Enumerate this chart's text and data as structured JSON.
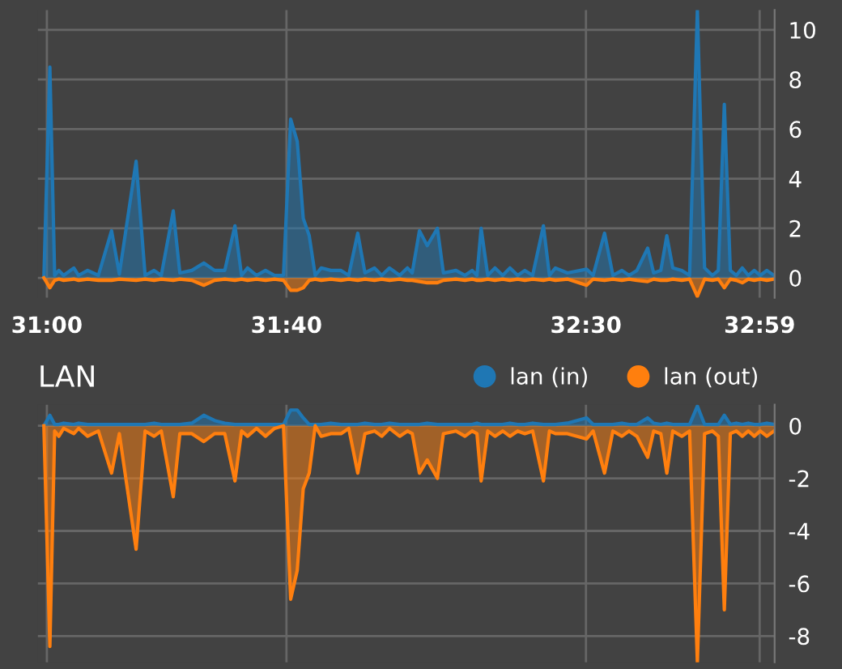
{
  "chart_data": [
    {
      "type": "area",
      "grid": true,
      "legend": false,
      "x": [
        1859.5,
        1860.5,
        1861.3,
        1862,
        1862.8,
        1864.5,
        1865.3,
        1866.8,
        1868.6,
        1870.8,
        1872.1,
        1874.9,
        1876.4,
        1877.9,
        1879.1,
        1881.1,
        1882.2,
        1884.2,
        1886.2,
        1888,
        1889.7,
        1891.4,
        1892.5,
        1893.5,
        1895,
        1896.5,
        1898,
        1899.5,
        1900.7,
        1901.8,
        1902.8,
        1903.8,
        1904.8,
        1905.8,
        1907.4,
        1909.1,
        1910.4,
        1911.9,
        1913.1,
        1914.7,
        1915.9,
        1917.2,
        1918.9,
        1920.2,
        1921,
        1922.2,
        1923.5,
        1925.2,
        1926.2,
        1928.3,
        1929.8,
        1931,
        1931.8,
        1932.5,
        1933.6,
        1934.8,
        1936.1,
        1937.3,
        1938.6,
        1939.8,
        1941.1,
        1942.9,
        1943.9,
        1944.9,
        1946.9,
        1950.1,
        1951.2,
        1953.1,
        1954.5,
        1956,
        1957.2,
        1958.5,
        1960.3,
        1961.3,
        1962.5,
        1963.5,
        1964.5,
        1966,
        1967.3,
        1968.6,
        1969.8,
        1971.1,
        1972.1,
        1973.1,
        1974.1,
        1975.1,
        1976.1,
        1977.1,
        1978.1,
        1979.1,
        1980.2,
        1981.4
      ],
      "xlim": [
        1858.5,
        1981.5
      ],
      "ylim": [
        -0.8,
        10.8
      ],
      "xticks": [
        {
          "value": 1860,
          "label": "31:00"
        },
        {
          "value": 1900,
          "label": "31:40"
        },
        {
          "value": 1950,
          "label": "32:30"
        },
        {
          "value": 1979,
          "label": "32:59"
        }
      ],
      "yticks": [
        0,
        2,
        4,
        6,
        8,
        10
      ],
      "series": [
        {
          "color": "#1f77b4",
          "values": [
            0,
            8.5,
            0.1,
            0.3,
            0.1,
            0.4,
            0.1,
            0.3,
            0.1,
            1.9,
            0.15,
            4.7,
            0.1,
            0.3,
            0.1,
            2.7,
            0.2,
            0.3,
            0.6,
            0.3,
            0.3,
            2.1,
            0.1,
            0.4,
            0.1,
            0.3,
            0.1,
            0.1,
            6.4,
            5.5,
            2.4,
            1.7,
            0.1,
            0.4,
            0.3,
            0.3,
            0.1,
            1.8,
            0.2,
            0.4,
            0.1,
            0.4,
            0.1,
            0.4,
            0.2,
            1.9,
            1.3,
            2.0,
            0.2,
            0.3,
            0.1,
            0.3,
            0.1,
            2.0,
            0.1,
            0.4,
            0.1,
            0.4,
            0.1,
            0.3,
            0.1,
            2.1,
            0.1,
            0.4,
            0.2,
            0.35,
            0.1,
            1.8,
            0.1,
            0.3,
            0.1,
            0.3,
            1.2,
            0.2,
            0.3,
            1.7,
            0.4,
            0.3,
            0.1,
            10.8,
            0.4,
            0.1,
            0.3,
            7.0,
            0.3,
            0.1,
            0.4,
            0.1,
            0.3,
            0.1,
            0.3,
            0.1
          ]
        },
        {
          "color": "#ff7f0e",
          "values": [
            0,
            -0.4,
            -0.1,
            -0.05,
            -0.1,
            -0.05,
            -0.1,
            -0.05,
            -0.1,
            -0.1,
            -0.05,
            -0.1,
            -0.05,
            -0.1,
            -0.05,
            -0.1,
            -0.05,
            -0.1,
            -0.3,
            -0.1,
            -0.05,
            -0.1,
            -0.05,
            -0.1,
            -0.05,
            -0.1,
            -0.05,
            -0.1,
            -0.5,
            -0.5,
            -0.4,
            -0.1,
            -0.05,
            -0.1,
            -0.05,
            -0.1,
            -0.05,
            -0.1,
            -0.05,
            -0.1,
            -0.05,
            -0.1,
            -0.05,
            -0.1,
            -0.1,
            -0.15,
            -0.2,
            -0.2,
            -0.1,
            -0.05,
            -0.1,
            -0.05,
            -0.1,
            -0.1,
            -0.05,
            -0.1,
            -0.05,
            -0.1,
            -0.05,
            -0.1,
            -0.05,
            -0.1,
            -0.05,
            -0.1,
            -0.05,
            -0.3,
            -0.05,
            -0.1,
            -0.05,
            -0.1,
            -0.05,
            -0.1,
            -0.15,
            -0.05,
            -0.1,
            -0.1,
            -0.05,
            -0.1,
            -0.05,
            -0.75,
            -0.05,
            -0.1,
            -0.05,
            -0.4,
            -0.05,
            -0.1,
            -0.2,
            -0.05,
            -0.1,
            -0.05,
            -0.1,
            -0.05
          ]
        }
      ]
    },
    {
      "type": "area",
      "title": "LAN",
      "grid": true,
      "legend": "top right",
      "tick_labels": "y",
      "x": [
        1859.5,
        1860.5,
        1861.3,
        1862,
        1862.8,
        1864.5,
        1865.3,
        1866.8,
        1868.6,
        1870.8,
        1872.1,
        1874.9,
        1876.4,
        1877.9,
        1879.1,
        1881.1,
        1882.2,
        1884.2,
        1886.2,
        1888,
        1889.7,
        1891.4,
        1892.5,
        1893.5,
        1895,
        1896.5,
        1898,
        1899.5,
        1900.7,
        1901.8,
        1902.8,
        1903.8,
        1904.8,
        1905.8,
        1907.4,
        1909.1,
        1910.4,
        1911.9,
        1913.1,
        1914.7,
        1915.9,
        1917.2,
        1918.9,
        1920.2,
        1921,
        1922.2,
        1923.5,
        1925.2,
        1926.2,
        1928.3,
        1929.8,
        1931,
        1931.8,
        1932.5,
        1933.6,
        1934.8,
        1936.1,
        1937.3,
        1938.6,
        1939.8,
        1941.1,
        1942.9,
        1943.9,
        1944.9,
        1946.9,
        1950.1,
        1951.2,
        1953.1,
        1954.5,
        1956,
        1957.2,
        1958.5,
        1960.3,
        1961.3,
        1962.5,
        1963.5,
        1964.5,
        1966,
        1967.3,
        1968.6,
        1969.8,
        1971.1,
        1972.1,
        1973.1,
        1974.1,
        1975.1,
        1976.1,
        1977.1,
        1978.1,
        1979.1,
        1980.2,
        1981.4
      ],
      "xlim": [
        1858.5,
        1981.5
      ],
      "ylim": [
        -9.0,
        0.8
      ],
      "xticks": [
        {
          "value": 1860,
          "label": null
        },
        {
          "value": 1900,
          "label": null
        },
        {
          "value": 1950,
          "label": null
        },
        {
          "value": 1979,
          "label": null
        }
      ],
      "yticks": [
        0,
        -2,
        -4,
        -6,
        -8
      ],
      "series": [
        {
          "name": "lan (in)",
          "color": "#1f77b4",
          "values": [
            0,
            0.4,
            0.05,
            0.05,
            0.1,
            0.05,
            0.1,
            0.05,
            0.05,
            0.05,
            0.05,
            0.05,
            0.05,
            0.1,
            0.05,
            0.05,
            0.05,
            0.1,
            0.4,
            0.2,
            0.1,
            0.05,
            0.05,
            0.05,
            0.05,
            0.05,
            0.05,
            0.05,
            0.6,
            0.6,
            0.3,
            0.05,
            0.05,
            0.05,
            0.1,
            0.05,
            0.05,
            0.05,
            0.1,
            0.05,
            0.05,
            0.1,
            0.05,
            0.05,
            0.05,
            0.05,
            0.1,
            0.05,
            0.05,
            0.05,
            0.05,
            0.05,
            0.1,
            0.05,
            0.05,
            0.05,
            0.05,
            0.1,
            0.05,
            0.05,
            0.1,
            0.05,
            0.05,
            0.05,
            0.1,
            0.3,
            0.05,
            0.05,
            0.05,
            0.1,
            0.05,
            0.05,
            0.3,
            0.1,
            0.05,
            0.1,
            0.05,
            0.05,
            0.05,
            0.75,
            0.05,
            0.05,
            0.05,
            0.4,
            0.05,
            0.1,
            0.05,
            0.1,
            0.05,
            0.05,
            0.1,
            0.05
          ]
        },
        {
          "name": "lan (out)",
          "color": "#ff7f0e",
          "values": [
            0,
            -8.4,
            -0.2,
            -0.4,
            -0.1,
            -0.3,
            -0.1,
            -0.4,
            -0.2,
            -1.8,
            -0.3,
            -4.7,
            -0.2,
            -0.4,
            -0.2,
            -2.7,
            -0.3,
            -0.3,
            -0.6,
            -0.3,
            -0.3,
            -2.1,
            -0.2,
            -0.4,
            -0.1,
            -0.4,
            -0.1,
            0,
            -6.6,
            -5.5,
            -2.4,
            -1.8,
            0,
            -0.4,
            -0.3,
            -0.3,
            -0.1,
            -1.8,
            -0.3,
            -0.2,
            -0.4,
            -0.1,
            -0.4,
            -0.2,
            -0.3,
            -1.8,
            -1.3,
            -2.0,
            -0.3,
            -0.2,
            -0.4,
            -0.2,
            -0.3,
            -2.1,
            -0.2,
            -0.4,
            -0.2,
            -0.4,
            -0.2,
            -0.3,
            -0.2,
            -2.1,
            -0.2,
            -0.3,
            -0.3,
            -0.5,
            -0.2,
            -1.8,
            -0.2,
            -0.4,
            -0.2,
            -0.4,
            -1.2,
            -0.2,
            -0.3,
            -1.8,
            -0.2,
            -0.4,
            -0.2,
            -9.0,
            -0.3,
            -0.2,
            -0.4,
            -7.0,
            -0.3,
            -0.2,
            -0.4,
            -0.2,
            -0.4,
            -0.2,
            -0.4,
            -0.2
          ]
        }
      ]
    }
  ]
}
